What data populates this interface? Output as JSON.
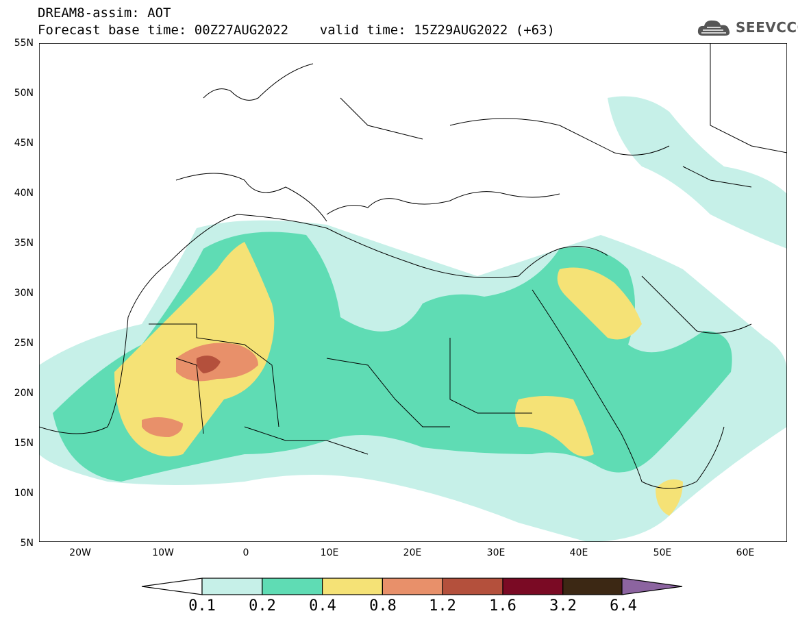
{
  "header": {
    "title": "DREAM8-assim: AOT",
    "subtitle": "Forecast base time: 00Z27AUG2022    valid time: 15Z29AUG2022 (+63)",
    "logo_text": "SEEVCCC"
  },
  "map": {
    "lat_labels": [
      "55N",
      "50N",
      "45N",
      "40N",
      "35N",
      "30N",
      "25N",
      "20N",
      "15N",
      "10N",
      "5N"
    ],
    "lon_labels": [
      "20W",
      "10W",
      "0",
      "10E",
      "20E",
      "30E",
      "40E",
      "50E",
      "60E"
    ],
    "lat_range": [
      5,
      55
    ],
    "lon_range": [
      -25,
      65
    ],
    "field": "AOT"
  },
  "colorbar": {
    "tick_labels": [
      "0.1",
      "0.2",
      "0.4",
      "0.8",
      "1.2",
      "1.6",
      "3.2",
      "6.4"
    ],
    "colors": [
      "#c6f0e8",
      "#5fdcb4",
      "#f5e276",
      "#e8906a",
      "#b4503c",
      "#7a0a24",
      "#3c2814",
      "#8c64a0"
    ]
  },
  "colors": {
    "level1": "#c6f0e8",
    "level2": "#5fdcb4",
    "level3": "#f5e276",
    "level4": "#e8906a",
    "level5": "#b4503c"
  }
}
